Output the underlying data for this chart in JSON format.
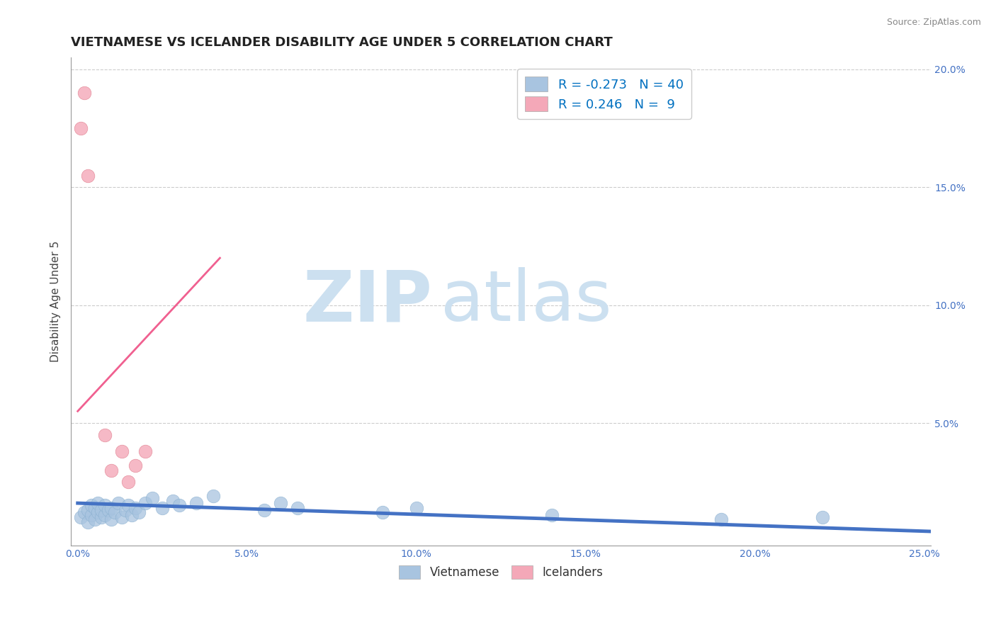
{
  "title": "VIETNAMESE VS ICELANDER DISABILITY AGE UNDER 5 CORRELATION CHART",
  "source": "Source: ZipAtlas.com",
  "ylabel": "Disability Age Under 5",
  "xlim": [
    -0.002,
    0.252
  ],
  "ylim": [
    -0.002,
    0.205
  ],
  "xticks": [
    0.0,
    0.05,
    0.1,
    0.15,
    0.2,
    0.25
  ],
  "yticks": [
    0.0,
    0.05,
    0.1,
    0.15,
    0.2
  ],
  "xtick_labels": [
    "0.0%",
    "5.0%",
    "10.0%",
    "15.0%",
    "20.0%",
    "25.0%"
  ],
  "ytick_labels": [
    "",
    "5.0%",
    "10.0%",
    "15.0%",
    "20.0%"
  ],
  "background_color": "#ffffff",
  "grid_color": "#cccccc",
  "viet_color": "#a8c4e0",
  "icel_color": "#f4a8b8",
  "viet_line_color": "#4472c4",
  "icel_line_color": "#f06090",
  "viet_R": -0.273,
  "viet_N": 40,
  "icel_R": 0.246,
  "icel_N": 9,
  "legend_color": "#0070c0",
  "watermark_zip": "ZIP",
  "watermark_atlas": "atlas",
  "watermark_color": "#cce0f0",
  "viet_points_x": [
    0.001,
    0.002,
    0.003,
    0.003,
    0.004,
    0.004,
    0.005,
    0.005,
    0.006,
    0.006,
    0.007,
    0.007,
    0.008,
    0.008,
    0.009,
    0.01,
    0.01,
    0.011,
    0.012,
    0.013,
    0.014,
    0.015,
    0.016,
    0.017,
    0.018,
    0.02,
    0.022,
    0.025,
    0.028,
    0.03,
    0.035,
    0.04,
    0.055,
    0.06,
    0.065,
    0.09,
    0.1,
    0.14,
    0.19,
    0.22
  ],
  "viet_points_y": [
    0.01,
    0.012,
    0.008,
    0.013,
    0.011,
    0.015,
    0.009,
    0.014,
    0.012,
    0.016,
    0.01,
    0.013,
    0.011,
    0.015,
    0.013,
    0.009,
    0.014,
    0.012,
    0.016,
    0.01,
    0.013,
    0.015,
    0.011,
    0.014,
    0.012,
    0.016,
    0.018,
    0.014,
    0.017,
    0.015,
    0.016,
    0.019,
    0.013,
    0.016,
    0.014,
    0.012,
    0.014,
    0.011,
    0.009,
    0.01
  ],
  "icel_points_x": [
    0.001,
    0.002,
    0.003,
    0.008,
    0.01,
    0.013,
    0.015,
    0.017,
    0.02
  ],
  "icel_points_y": [
    0.175,
    0.19,
    0.155,
    0.045,
    0.03,
    0.038,
    0.025,
    0.032,
    0.038
  ],
  "viet_line_x0": 0.0,
  "viet_line_y0": 0.016,
  "viet_line_x1": 0.252,
  "viet_line_y1": 0.004,
  "icel_line_x0": 0.0,
  "icel_line_y0": 0.055,
  "icel_line_x1": 0.042,
  "icel_line_y1": 0.12
}
